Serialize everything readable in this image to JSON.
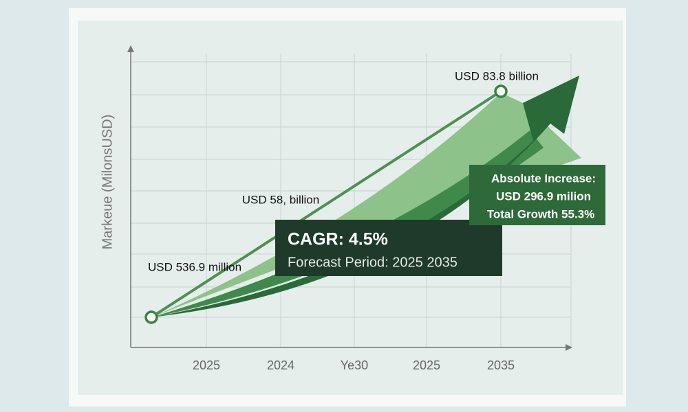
{
  "chart_data": {
    "type": "line",
    "y_label": "Markeue (MilonsUSD)",
    "categories": [
      "2025",
      "2024",
      "Ye30",
      "2025",
      "2035"
    ],
    "annotations": [
      "USD 536.9 million",
      "USD 58, billion",
      "USD 83.8 billion"
    ],
    "cagr_box": {
      "title": "CAGR: 4.5%",
      "subtitle": "Forecast Period: 2025 2035"
    },
    "increase_box": [
      "Absolute Increase:",
      "USD 296.9 milion",
      "Total Growth 55.3%"
    ]
  }
}
